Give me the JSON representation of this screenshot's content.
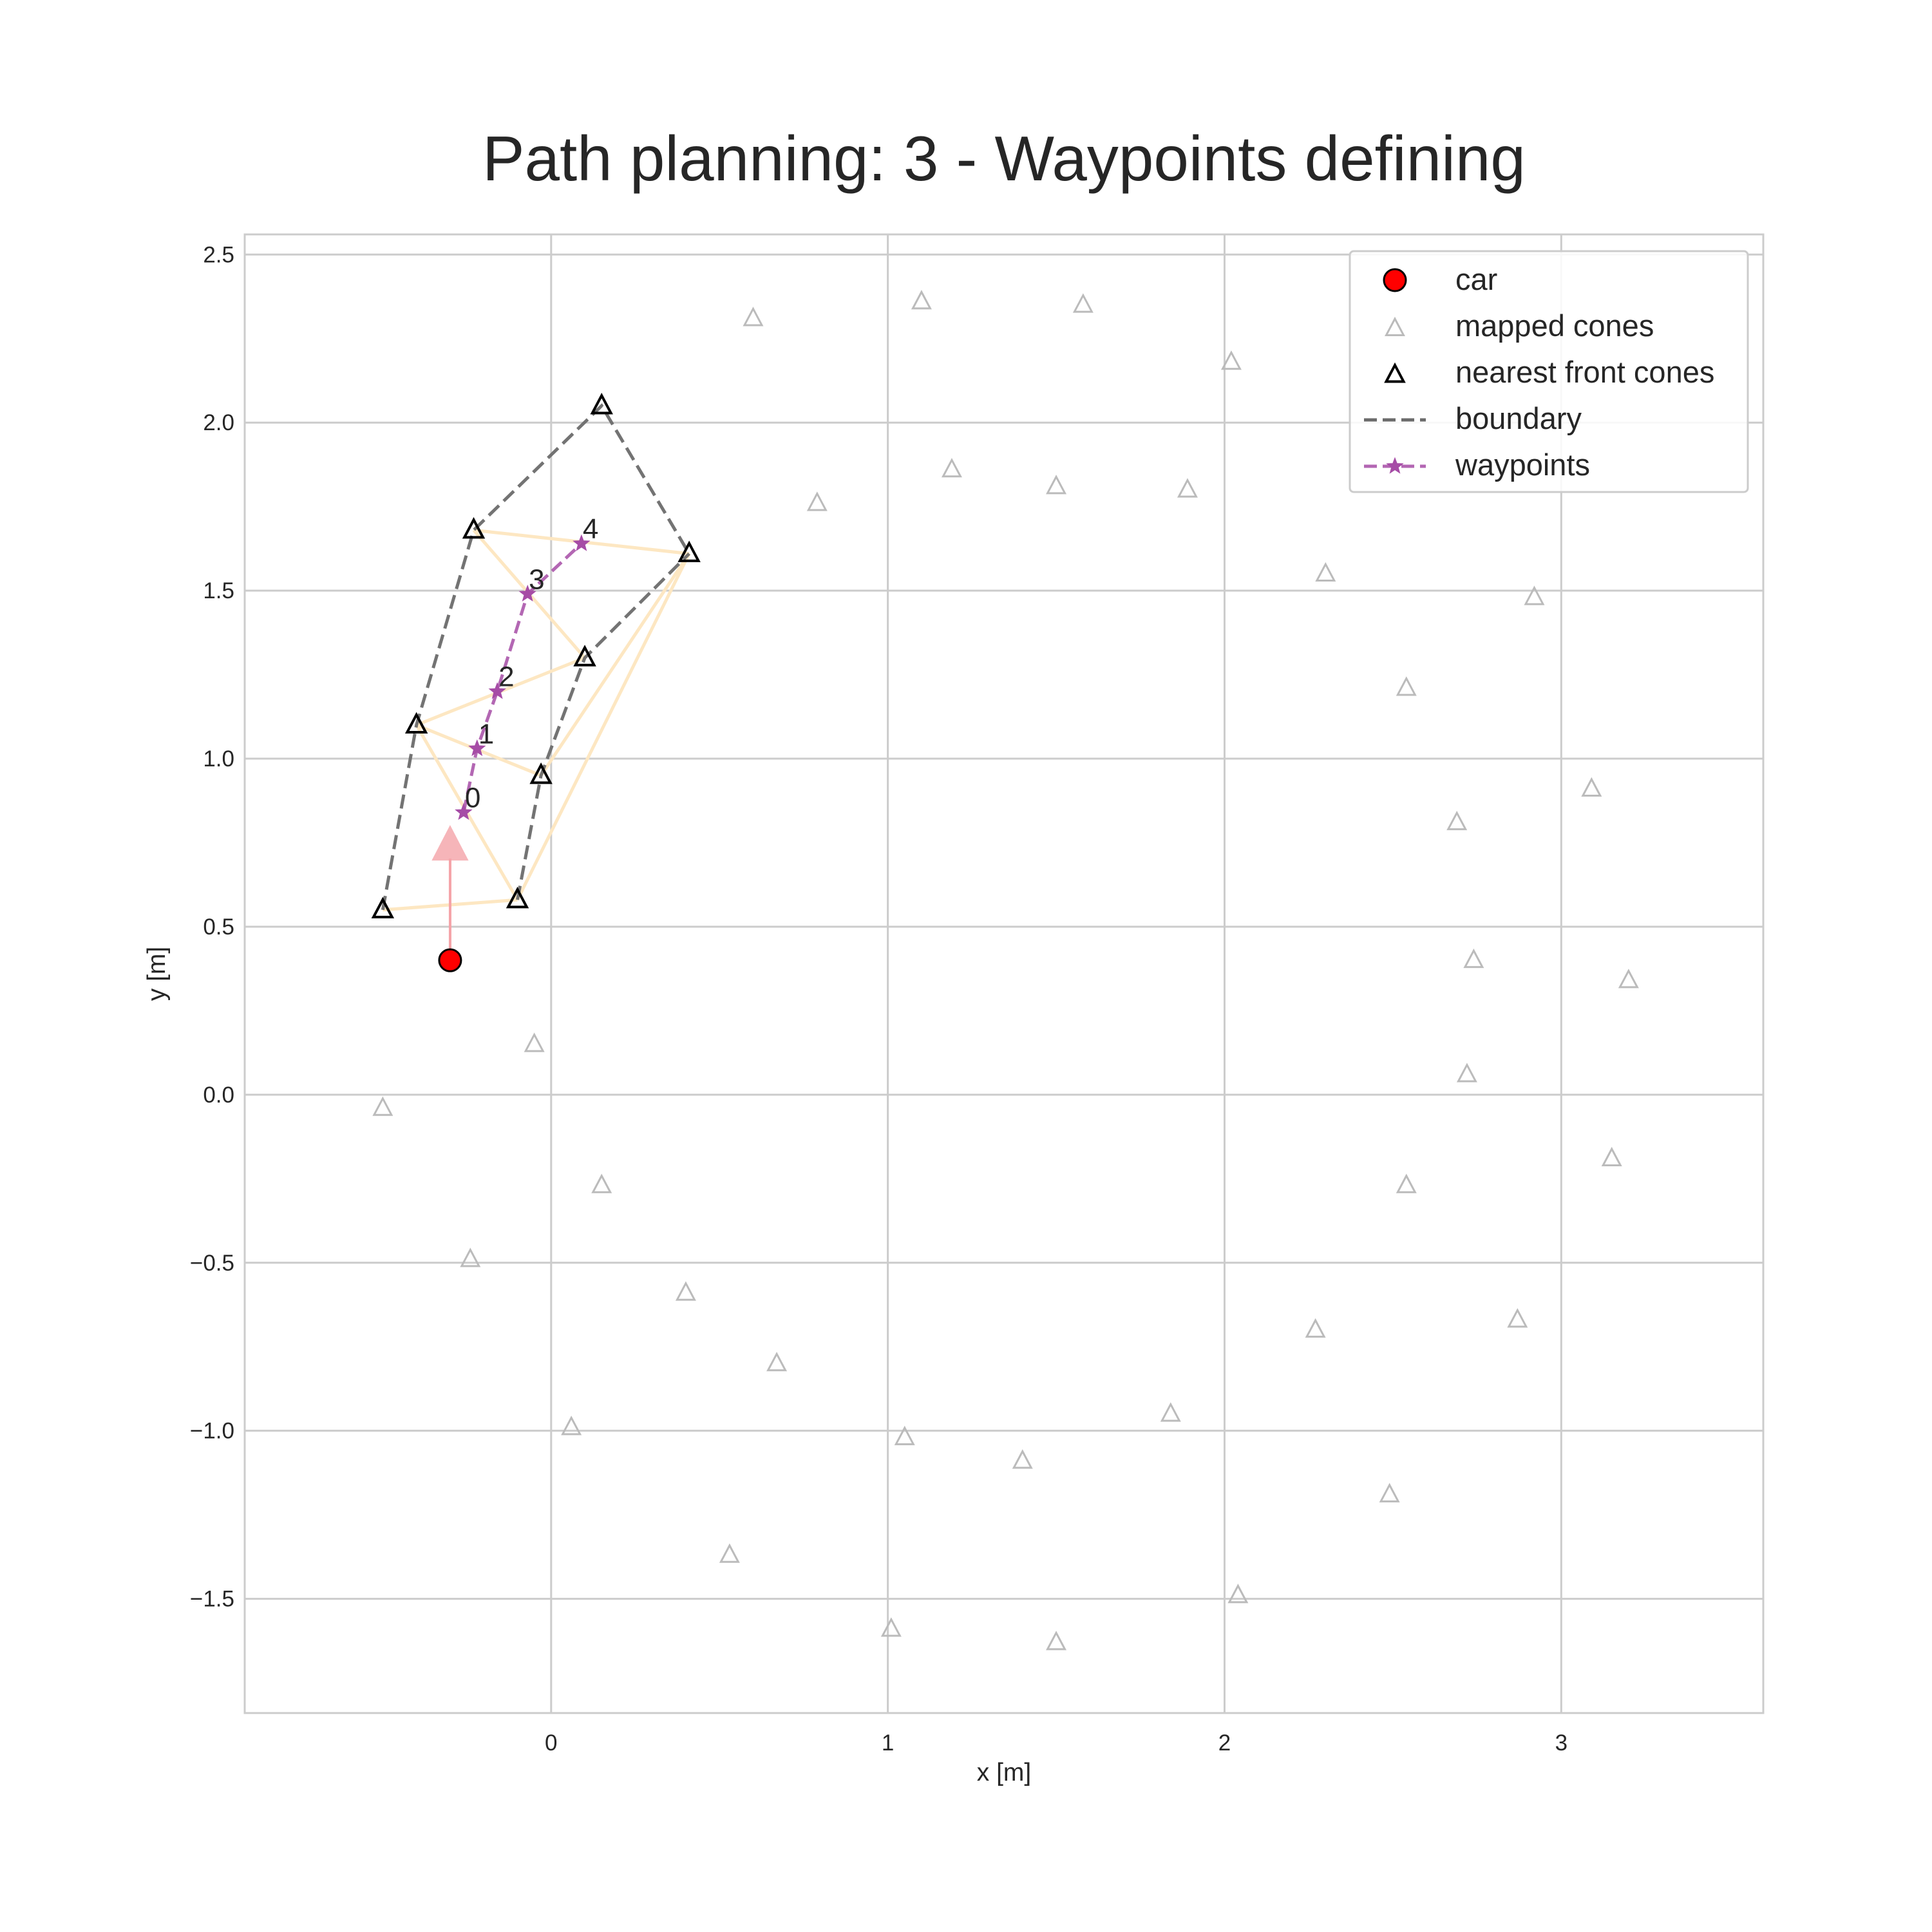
{
  "chart_data": {
    "type": "scatter",
    "title": "Path planning: 3 - Waypoints defining",
    "xlabel": "x [m]",
    "ylabel": "y [m]",
    "xlim": [
      -0.91,
      3.6
    ],
    "ylim": [
      -1.84,
      2.56
    ],
    "xticks": [
      0,
      1,
      2,
      3
    ],
    "yticks": [
      -1.5,
      -1.0,
      -0.5,
      0.0,
      0.5,
      1.0,
      1.5,
      2.0,
      2.5
    ],
    "xtick_labels": [
      "0",
      "1",
      "2",
      "3"
    ],
    "ytick_labels": [
      "−1.5",
      "−1.0",
      "−0.5",
      "0.0",
      "0.5",
      "1.0",
      "1.5",
      "2.0",
      "2.5"
    ],
    "grid": true,
    "legend_position": "top-right",
    "legend": [
      {
        "label": "car",
        "marker": "circle",
        "color": "#ff0000"
      },
      {
        "label": "mapped cones",
        "marker": "triangle",
        "color": "#bbbbbb"
      },
      {
        "label": "nearest front cones",
        "marker": "triangle",
        "color": "#000000"
      },
      {
        "label": "boundary",
        "marker": "dashed-line",
        "color": "#6b6b6b"
      },
      {
        "label": "waypoints",
        "marker": "star-dashed-line",
        "color": "#a64ca6"
      }
    ],
    "car": {
      "x": -0.3,
      "y": 0.4,
      "heading_arrow_to": {
        "x": -0.3,
        "y": 0.76
      }
    },
    "mapped_cones": [
      [
        0.6,
        2.31
      ],
      [
        1.1,
        2.36
      ],
      [
        1.58,
        2.35
      ],
      [
        2.02,
        2.18
      ],
      [
        0.79,
        1.76
      ],
      [
        1.19,
        1.86
      ],
      [
        1.5,
        1.81
      ],
      [
        1.89,
        1.8
      ],
      [
        2.3,
        1.55
      ],
      [
        2.92,
        1.48
      ],
      [
        2.54,
        1.21
      ],
      [
        3.09,
        0.91
      ],
      [
        2.69,
        0.81
      ],
      [
        2.74,
        0.4
      ],
      [
        3.2,
        0.34
      ],
      [
        2.72,
        0.06
      ],
      [
        -0.05,
        0.15
      ],
      [
        -0.5,
        -0.04
      ],
      [
        0.15,
        -0.27
      ],
      [
        2.54,
        -0.27
      ],
      [
        3.15,
        -0.19
      ],
      [
        -0.24,
        -0.49
      ],
      [
        0.4,
        -0.59
      ],
      [
        0.67,
        -0.8
      ],
      [
        2.27,
        -0.7
      ],
      [
        2.87,
        -0.67
      ],
      [
        0.06,
        -0.99
      ],
      [
        1.05,
        -1.02
      ],
      [
        1.4,
        -1.09
      ],
      [
        1.84,
        -0.95
      ],
      [
        2.49,
        -1.19
      ],
      [
        0.53,
        -1.37
      ],
      [
        1.01,
        -1.59
      ],
      [
        1.5,
        -1.63
      ],
      [
        2.04,
        -1.49
      ]
    ],
    "front_cones": [
      [
        -0.5,
        0.55
      ],
      [
        -0.1,
        0.58
      ],
      [
        -0.4,
        1.1
      ],
      [
        -0.03,
        0.95
      ],
      [
        -0.23,
        1.68
      ],
      [
        0.1,
        1.3
      ],
      [
        0.15,
        2.05
      ],
      [
        0.41,
        1.61
      ]
    ],
    "boundary_left": [
      [
        -0.5,
        0.55
      ],
      [
        -0.4,
        1.1
      ],
      [
        -0.23,
        1.68
      ],
      [
        0.15,
        2.05
      ],
      [
        0.41,
        1.61
      ]
    ],
    "boundary_right": [
      [
        -0.1,
        0.58
      ],
      [
        -0.03,
        0.95
      ],
      [
        0.1,
        1.3
      ],
      [
        0.41,
        1.61
      ]
    ],
    "triangulation_edges": [
      [
        [
          -0.5,
          0.55
        ],
        [
          -0.1,
          0.58
        ]
      ],
      [
        [
          -0.4,
          1.1
        ],
        [
          -0.1,
          0.58
        ]
      ],
      [
        [
          -0.4,
          1.1
        ],
        [
          -0.03,
          0.95
        ]
      ],
      [
        [
          -0.4,
          1.1
        ],
        [
          0.1,
          1.3
        ]
      ],
      [
        [
          -0.23,
          1.68
        ],
        [
          0.1,
          1.3
        ]
      ],
      [
        [
          -0.23,
          1.68
        ],
        [
          0.41,
          1.61
        ]
      ],
      [
        [
          -0.1,
          0.58
        ],
        [
          0.41,
          1.61
        ]
      ],
      [
        [
          -0.03,
          0.95
        ],
        [
          0.41,
          1.61
        ]
      ]
    ],
    "waypoints": {
      "x": [
        -0.26,
        -0.22,
        -0.16,
        -0.07,
        0.09
      ],
      "y": [
        0.84,
        1.03,
        1.2,
        1.49,
        1.64
      ],
      "labels": [
        "0",
        "1",
        "2",
        "3",
        "4"
      ]
    }
  },
  "colors": {
    "car": "#ff0000",
    "car_arrow": "#f5a3a8",
    "mapped_cone": "#bbbbbb",
    "front_cone": "#000000",
    "boundary": "#6b6b6b",
    "triangulation": "#fde7c2",
    "waypoints": "#a64ca6",
    "grid": "#cccccc",
    "axes_edge": "#cccccc"
  }
}
